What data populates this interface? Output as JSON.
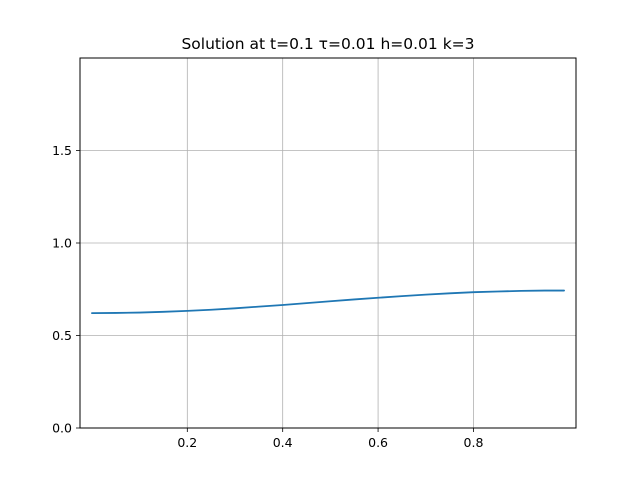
{
  "chart_data": {
    "type": "line",
    "title": "Solution at t=0.1 τ=0.01 h=0.01 k=3",
    "xlabel": "",
    "ylabel": "",
    "xlim": [
      -0.025,
      1.015
    ],
    "ylim": [
      0.0,
      2.0
    ],
    "x_ticks": [
      0.2,
      0.4,
      0.6,
      0.8
    ],
    "x_tick_labels": [
      "0.2",
      "0.4",
      "0.6",
      "0.8"
    ],
    "y_ticks": [
      0.0,
      0.5,
      1.0,
      1.5
    ],
    "y_tick_labels": [
      "0.0",
      "0.5",
      "1.0",
      "1.5"
    ],
    "grid": true,
    "series": [
      {
        "color": "#1f77b4",
        "x": [
          0.0,
          0.05,
          0.1,
          0.15,
          0.2,
          0.25,
          0.3,
          0.35,
          0.4,
          0.45,
          0.5,
          0.55,
          0.6,
          0.65,
          0.7,
          0.75,
          0.8,
          0.85,
          0.9,
          0.95,
          0.99
        ],
        "y": [
          0.621,
          0.622,
          0.624,
          0.628,
          0.633,
          0.639,
          0.647,
          0.656,
          0.665,
          0.675,
          0.685,
          0.695,
          0.704,
          0.713,
          0.721,
          0.728,
          0.734,
          0.738,
          0.741,
          0.743,
          0.743
        ]
      }
    ]
  }
}
